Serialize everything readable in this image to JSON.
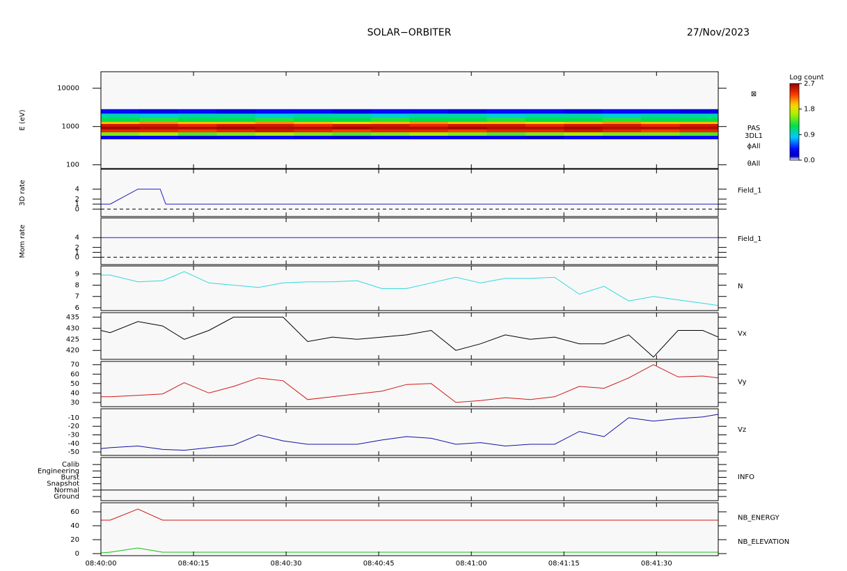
{
  "header": {
    "title": "SOLAR−ORBITER",
    "date": "27/Nov/2023"
  },
  "chart_data": [
    {
      "type": "heatmap",
      "ylabel": "E (eV)",
      "log_y": true,
      "xlim": [
        0,
        100
      ],
      "ylim": [
        80,
        27000
      ],
      "yticks": [
        100,
        1000,
        10000
      ],
      "x_edges": [
        0,
        6.25,
        12.5,
        18.75,
        25,
        31.25,
        37.5,
        43.75,
        50,
        56.25,
        62.5,
        68.75,
        75,
        81.25,
        87.5,
        93.75,
        100
      ],
      "y_edges": [
        470,
        580,
        715,
        850,
        1000,
        1180,
        1340,
        1700,
        2200,
        2840
      ],
      "z": [
        [
          0.3,
          0.4,
          0.2,
          0.3,
          0.4,
          0.3,
          0.2,
          0.3,
          0.4,
          0.3,
          0.3,
          0.2,
          0.4,
          0.3,
          0.3,
          0.4
        ],
        [
          1.5,
          1.6,
          1.4,
          1.5,
          1.6,
          1.5,
          1.4,
          1.5,
          1.6,
          1.5,
          1.4,
          1.5,
          1.6,
          1.5,
          1.5,
          1.4
        ],
        [
          2.4,
          2.4,
          2.3,
          2.4,
          2.5,
          2.4,
          2.3,
          2.4,
          2.4,
          2.3,
          2.4,
          2.4,
          2.5,
          2.4,
          2.3,
          2.4
        ],
        [
          2.65,
          2.6,
          2.6,
          2.65,
          2.6,
          2.6,
          2.65,
          2.6,
          2.6,
          2.65,
          2.6,
          2.6,
          2.65,
          2.6,
          2.6,
          2.6
        ],
        [
          2.5,
          2.5,
          2.4,
          2.5,
          2.5,
          2.4,
          2.5,
          2.5,
          2.4,
          2.5,
          2.5,
          2.4,
          2.5,
          2.5,
          2.4,
          2.5
        ],
        [
          2.0,
          2.1,
          2.0,
          2.0,
          2.1,
          2.0,
          1.9,
          2.0,
          2.1,
          2.0,
          2.0,
          1.9,
          2.0,
          2.1,
          2.0,
          2.0
        ],
        [
          1.2,
          1.3,
          1.2,
          1.2,
          1.3,
          1.2,
          1.2,
          1.3,
          1.2,
          1.2,
          1.3,
          1.2,
          1.2,
          1.3,
          1.2,
          1.2
        ],
        [
          1.0,
          0.9,
          1.0,
          1.0,
          0.9,
          1.0,
          1.0,
          0.9,
          1.0,
          1.0,
          0.9,
          1.0,
          1.0,
          0.9,
          1.0,
          1.0
        ],
        [
          0.4,
          0.3,
          0.4,
          0.3,
          0.4,
          0.4,
          0.3,
          0.4,
          0.4,
          0.3,
          0.4,
          0.4,
          0.3,
          0.4,
          0.4,
          0.3
        ]
      ],
      "colorbar": {
        "label": "Log count",
        "lim": [
          0,
          2.7
        ],
        "ticks": [
          {
            "value": 0,
            "label": "0.0"
          },
          0.9,
          1.8,
          2.7
        ]
      },
      "right_labels": [
        "⊠",
        "PAS",
        "3DL1",
        "ϕAll",
        "θAll"
      ]
    },
    {
      "type": "line",
      "ylabel": "3D rate",
      "xlim": [
        0,
        100
      ],
      "ylim": [
        -1.5,
        8
      ],
      "yticks": [
        0,
        1,
        2,
        4
      ],
      "refline": 0,
      "series": [
        {
          "name": "Field_1",
          "color": "#1c1cc8",
          "x": [
            0,
            1.5,
            6,
            9.6,
            10.5,
            100
          ],
          "values": [
            1,
            1,
            4,
            4,
            1,
            1
          ]
        }
      ]
    },
    {
      "type": "line",
      "ylabel": "Mom rate",
      "xlim": [
        0,
        100
      ],
      "ylim": [
        -1.5,
        8
      ],
      "yticks": [
        0,
        1,
        2,
        4
      ],
      "refline": 0,
      "series": [
        {
          "name": "Field_1",
          "color": "#1c1cc8",
          "x": [
            0,
            100
          ],
          "values": [
            4,
            4
          ]
        }
      ]
    },
    {
      "type": "line",
      "xlim": [
        0,
        100
      ],
      "ylim": [
        5.75,
        9.7
      ],
      "yticks": [
        6,
        7,
        8,
        9
      ],
      "x": [
        0,
        1.5,
        6,
        10,
        13.5,
        17.5,
        21.5,
        25.5,
        29.5,
        33.5,
        37.5,
        41.5,
        45.5,
        49.5,
        53.5,
        57.5,
        61.5,
        65.5,
        69.5,
        73.5,
        77.5,
        81.5,
        85.5,
        89.5,
        93.5,
        97.5,
        100
      ],
      "series": [
        {
          "name": "N",
          "color": "#30d8e0",
          "values": [
            8.9,
            8.9,
            8.3,
            8.4,
            9.2,
            8.2,
            8.0,
            7.8,
            8.2,
            8.3,
            8.3,
            8.4,
            7.7,
            7.7,
            8.2,
            8.7,
            8.2,
            8.6,
            8.6,
            8.7,
            7.2,
            7.9,
            6.6,
            7.0,
            6.7,
            6.4,
            6.2
          ]
        }
      ]
    },
    {
      "type": "line",
      "xlim": [
        0,
        100
      ],
      "ylim": [
        416,
        437
      ],
      "yticks": [
        420,
        425,
        430,
        435
      ],
      "x": [
        0,
        1.5,
        6,
        10,
        13.5,
        17.5,
        21.5,
        25.5,
        29.5,
        33.5,
        37.5,
        41.5,
        45.5,
        49.5,
        53.5,
        57.5,
        61.5,
        65.5,
        69.5,
        73.5,
        77.5,
        81.5,
        85.5,
        89.5,
        93.5,
        97.5,
        100
      ],
      "series": [
        {
          "name": "Vx",
          "color": "#000000",
          "values": [
            429,
            428,
            433,
            431,
            425,
            429,
            435,
            435,
            435,
            424,
            426,
            425,
            426,
            427,
            429,
            420,
            423,
            427,
            425,
            426,
            423,
            423,
            427,
            417,
            429,
            429,
            426
          ]
        }
      ]
    },
    {
      "type": "line",
      "xlim": [
        0,
        100
      ],
      "ylim": [
        25.5,
        73.5
      ],
      "yticks": [
        30,
        40,
        50,
        60,
        70
      ],
      "x": [
        0,
        1.5,
        6,
        10,
        13.5,
        17.5,
        21.5,
        25.5,
        29.5,
        33.5,
        37.5,
        41.5,
        45.5,
        49.5,
        53.5,
        57.5,
        61.5,
        65.5,
        69.5,
        73.5,
        77.5,
        81.5,
        85.5,
        89.5,
        93.5,
        97.5,
        100
      ],
      "series": [
        {
          "name": "Vy",
          "color": "#d01818",
          "values": [
            36,
            36,
            37.5,
            39,
            51,
            40,
            47,
            56,
            53,
            33,
            36,
            39,
            42,
            49,
            50,
            30,
            32,
            35,
            33,
            36,
            47,
            45,
            56,
            70,
            57,
            58,
            56
          ]
        }
      ]
    },
    {
      "type": "line",
      "xlim": [
        0,
        100
      ],
      "ylim": [
        -54,
        0.5
      ],
      "yticks": [
        -50,
        -40,
        -30,
        -20,
        -10
      ],
      "x": [
        0,
        1.5,
        6,
        10,
        13.5,
        17.5,
        21.5,
        25.5,
        29.5,
        33.5,
        37.5,
        41.5,
        45.5,
        49.5,
        53.5,
        57.5,
        61.5,
        65.5,
        69.5,
        73.5,
        77.5,
        81.5,
        85.5,
        89.5,
        93.5,
        97.5,
        100
      ],
      "series": [
        {
          "name": "Vz",
          "color": "#1010a8",
          "values": [
            -46,
            -45,
            -43,
            -47,
            -48,
            -45,
            -42,
            -30,
            -37,
            -41,
            -41,
            -41,
            -36,
            -32,
            -34,
            -41,
            -39,
            -43,
            -41,
            -41,
            -26,
            -32,
            -10,
            -14,
            -11,
            -9,
            -6
          ]
        }
      ]
    },
    {
      "type": "line",
      "xlim": [
        0,
        100
      ],
      "ylim": [
        -0.65,
        6.1
      ],
      "yticks": [
        {
          "value": 5,
          "label": "Calib"
        },
        {
          "value": 4,
          "label": "Engineering"
        },
        {
          "value": 3,
          "label": "Burst"
        },
        {
          "value": 2,
          "label": "Snapshot"
        },
        {
          "value": 1,
          "label": "Normal"
        },
        {
          "value": 0,
          "label": "Ground"
        }
      ],
      "series": [
        {
          "name": "INFO",
          "color": "#000000",
          "x": [
            0,
            100
          ],
          "values": [
            1,
            1
          ]
        }
      ]
    },
    {
      "type": "line",
      "xlim": [
        0,
        100
      ],
      "ylim": [
        -3,
        73
      ],
      "yticks": [
        0,
        20,
        40,
        60
      ],
      "xticks": [
        {
          "value": 0,
          "label": "08:40:00"
        },
        {
          "value": 15,
          "label": "08:40:15"
        },
        {
          "value": 30,
          "label": "08:40:30"
        },
        {
          "value": 45,
          "label": "08:40:45"
        },
        {
          "value": 60,
          "label": "08:41:00"
        },
        {
          "value": 75,
          "label": "08:41:15"
        },
        {
          "value": 90,
          "label": "08:41:30"
        }
      ],
      "series": [
        {
          "name": "NB_ENERGY",
          "color": "#d01818",
          "x": [
            0,
            1.5,
            6,
            10,
            100
          ],
          "values": [
            48,
            48,
            64,
            48,
            48
          ]
        },
        {
          "name": "NB_ELEVATION",
          "color": "#10c010",
          "x": [
            0,
            1.5,
            6,
            10,
            100
          ],
          "values": [
            1,
            2,
            8,
            2,
            2
          ]
        }
      ]
    }
  ]
}
